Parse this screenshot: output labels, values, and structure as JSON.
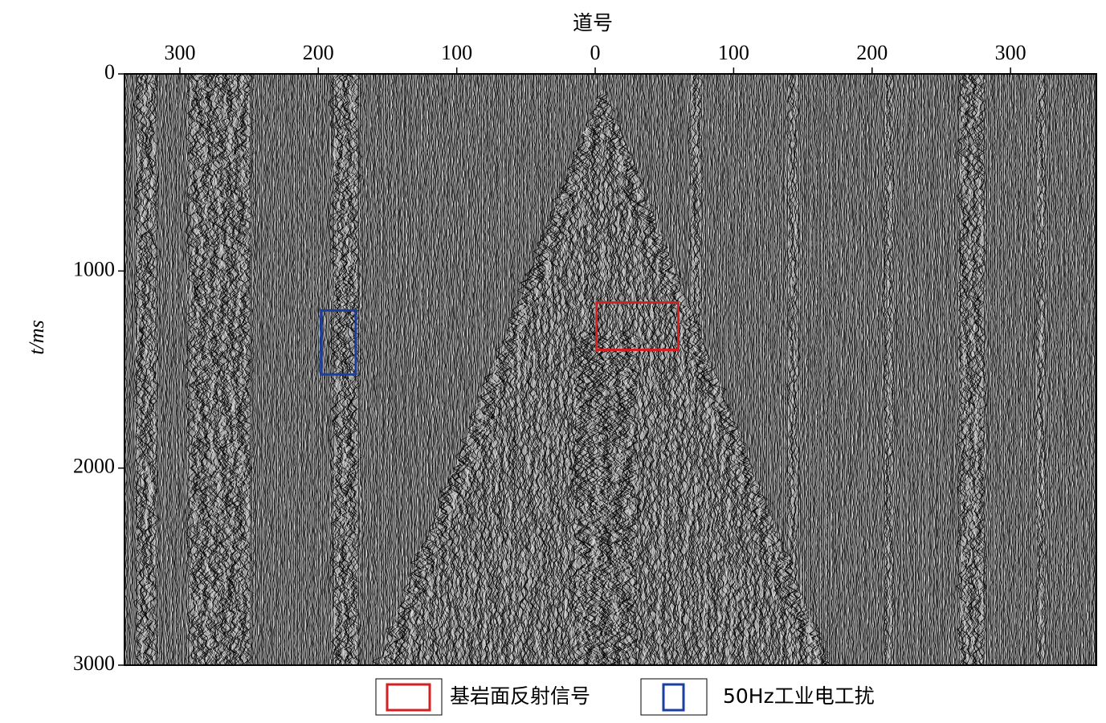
{
  "chart_data": {
    "type": "seismic",
    "xlabel": "道号",
    "ylabel": "t/ms",
    "xlim": [
      -340,
      362
    ],
    "xticks": [
      {
        "value": -300,
        "label": "300"
      },
      {
        "value": -200,
        "label": "200"
      },
      {
        "value": -100,
        "label": "100"
      },
      0,
      100,
      200,
      300
    ],
    "ylim": [
      0,
      3000
    ],
    "yticks": [
      0,
      1000,
      2000,
      3000
    ],
    "annotations": [
      {
        "label": "基岩面反射信号",
        "color": "#d42020",
        "x": [
          1,
          60
        ],
        "y": [
          1160,
          1400
        ]
      },
      {
        "label": "50Hz工业电工扰",
        "color": "#1a3fa0",
        "x": [
          -198,
          -173
        ],
        "y": [
          1200,
          1525
        ]
      }
    ]
  }
}
